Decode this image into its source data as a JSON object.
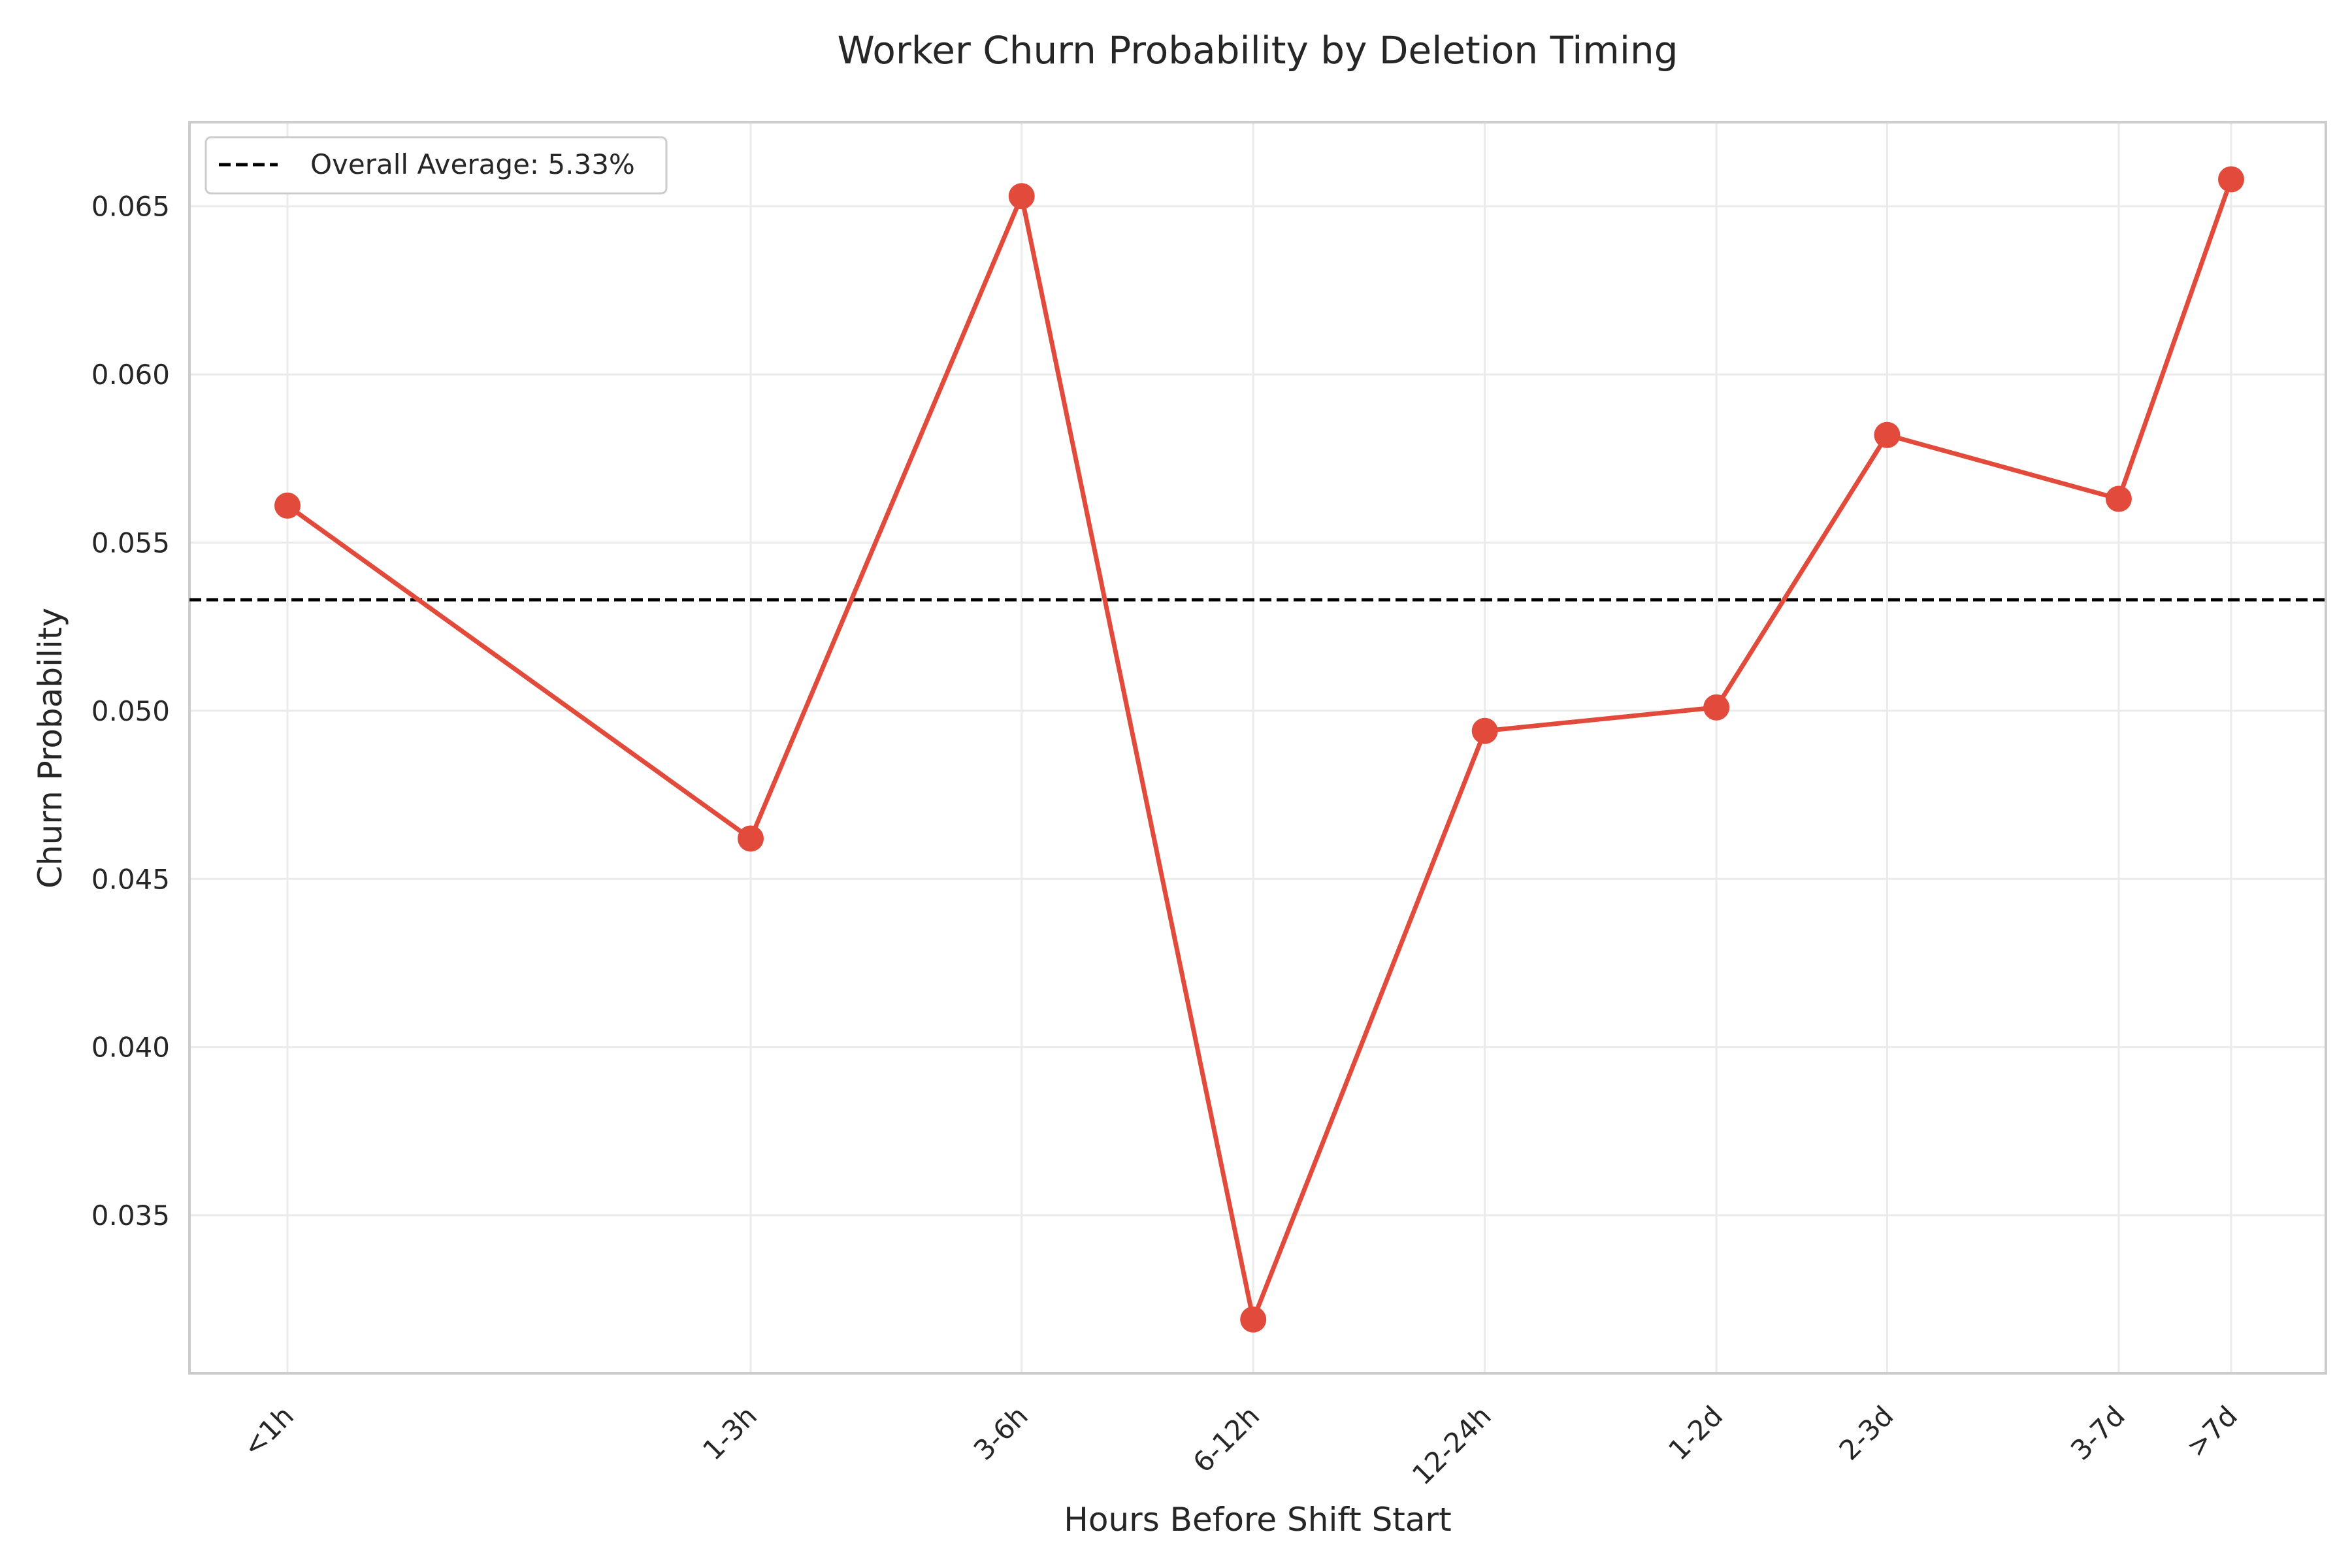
{
  "chart_data": {
    "type": "line",
    "title": "Worker Churn Probability by Deletion Timing",
    "xlabel": "Hours Before Shift Start",
    "ylabel": "Churn Probability",
    "x_positions": [
      0.5,
      2,
      4.5,
      9,
      18,
      36,
      60,
      120,
      168
    ],
    "categories": [
      "<1h",
      "1-3h",
      "3-6h",
      "6-12h",
      "12-24h",
      "1-2d",
      "2-3d",
      "3-7d",
      ">7d"
    ],
    "series": [
      {
        "values": [
          0.0561,
          0.0462,
          0.0653,
          0.0319,
          0.0494,
          0.0501,
          0.0582,
          0.0563,
          0.0658
        ],
        "color": "#e24a3b"
      }
    ],
    "reference_line": {
      "value": 0.0533,
      "label": "Overall Average: 5.33%",
      "style": "dashed",
      "color": "#000000"
    },
    "y_ticks": [
      "0.035",
      "0.040",
      "0.045",
      "0.050",
      "0.055",
      "0.060",
      "0.065"
    ],
    "ylim": [
      0.0303,
      0.0675
    ],
    "x_scale": "log",
    "grid": true,
    "legend_position": "upper-left"
  }
}
